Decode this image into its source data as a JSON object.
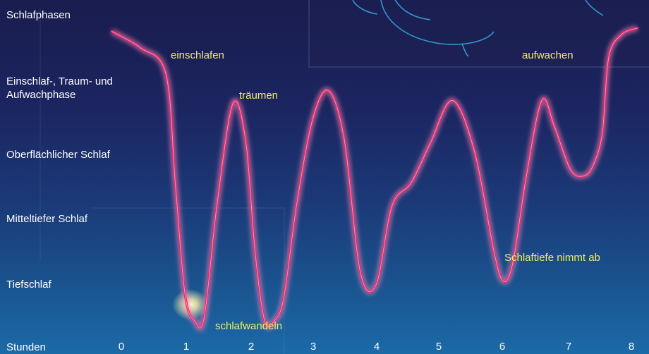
{
  "chart_data": {
    "type": "line",
    "ylabel": "Schlafphasen",
    "xlabel": "Stunden",
    "x_ticks": [
      "0",
      "1",
      "2",
      "3",
      "4",
      "5",
      "6",
      "7",
      "8"
    ],
    "xlim": [
      0,
      8
    ],
    "y_levels": [
      "Einschlaf-, Traum- und Aufwachphase",
      "Oberflächlicher Schlaf",
      "Mitteltiefer Schlaf",
      "Tiefschlaf"
    ],
    "ylim": [
      0,
      5
    ],
    "series": [
      {
        "color": "#e8286e",
        "x": [
          -0.15,
          0.3,
          0.7,
          0.85,
          1.0,
          1.15,
          1.3,
          1.5,
          1.75,
          1.95,
          2.1,
          2.25,
          2.4,
          2.55,
          2.75,
          3.0,
          3.25,
          3.5,
          3.75,
          4.0,
          4.25,
          4.55,
          4.85,
          5.2,
          5.55,
          5.85,
          6.0,
          6.15,
          6.35,
          6.6,
          6.8,
          7.05,
          7.25,
          7.4,
          7.55,
          7.65,
          7.85,
          8.1
        ],
        "y": [
          4.85,
          4.6,
          4.2,
          2.5,
          0.85,
          0.45,
          0.5,
          2.2,
          3.75,
          3.2,
          1.5,
          0.45,
          0.45,
          0.8,
          2.2,
          3.5,
          3.95,
          3.2,
          1.2,
          1.0,
          2.2,
          2.55,
          3.15,
          3.8,
          3.0,
          1.5,
          1.05,
          1.35,
          2.6,
          3.8,
          3.4,
          2.75,
          2.65,
          2.8,
          3.3,
          4.45,
          4.8,
          4.9
        ]
      }
    ],
    "annotations": {
      "einschlafen": "einschlafen",
      "traeumen": "träumen",
      "schlafwandeln": "schlafwandeln",
      "aufwachen": "aufwachen",
      "schlaftiefe": "Schlaftiefe nimmt ab"
    }
  },
  "colors": {
    "curve": "#e8286e",
    "curve_glow": "#ff7fb2",
    "annotation": "#f2ec6a",
    "text": "#ffffff",
    "bg_top": "#1a1c4e",
    "bg_bottom": "#1b6aa8"
  }
}
